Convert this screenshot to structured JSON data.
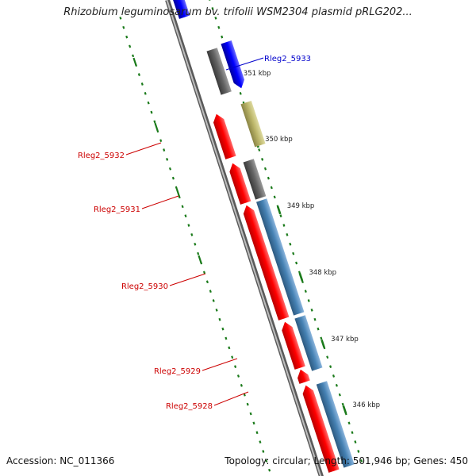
{
  "title": "Rhizobium leguminosarum bv. trifolii WSM2304 plasmid pRLG202...",
  "footer": {
    "accession": "Accession: NC_011366",
    "summary": "Topology: circular; Length: 501,946 bp; Genes: 450"
  },
  "colors": {
    "backbone": "#8a8a8a",
    "red": "#ff0000",
    "blue": "#0000ff",
    "steel": "#4682b4",
    "grey": "#646464",
    "khaki": "#bdb76b",
    "tick": "#1a7a1a",
    "label_red": "#cc0000",
    "label_blue": "#0000cc"
  },
  "scale": {
    "ticks": [
      {
        "label": "351 kbp"
      },
      {
        "label": "350 kbp"
      },
      {
        "label": "349 kbp"
      },
      {
        "label": "348 kbp"
      },
      {
        "label": "347 kbp"
      },
      {
        "label": "346 kbp"
      }
    ]
  },
  "gene_labels": [
    {
      "text": "Rleg2_5933",
      "color": "blue"
    },
    {
      "text": "Rleg2_5932",
      "color": "red"
    },
    {
      "text": "Rleg2_5931",
      "color": "red"
    },
    {
      "text": "Rleg2_5930",
      "color": "red"
    },
    {
      "text": "Rleg2_5929",
      "color": "red"
    },
    {
      "text": "Rleg2_5928",
      "color": "red"
    }
  ]
}
